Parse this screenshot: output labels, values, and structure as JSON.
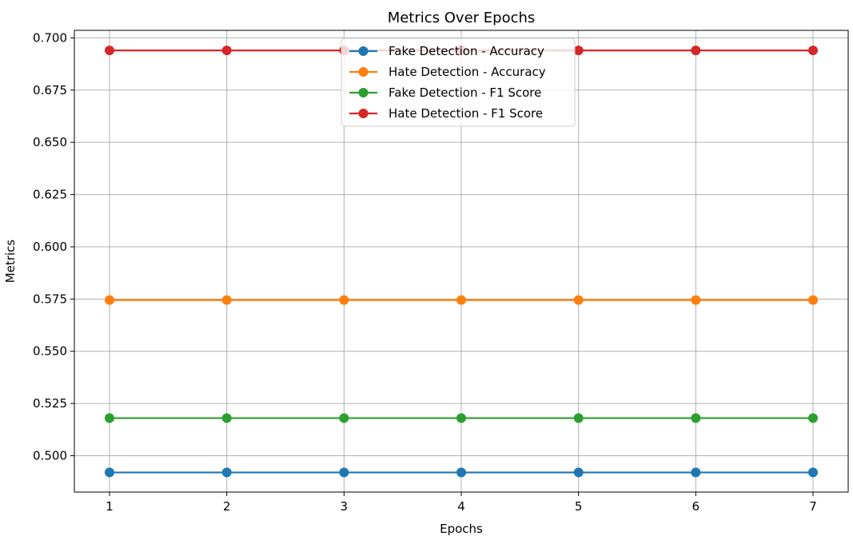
{
  "chart_data": {
    "type": "line",
    "title": "Metrics Over Epochs",
    "xlabel": "Epochs",
    "ylabel": "Metrics",
    "x": [
      1,
      2,
      3,
      4,
      5,
      6,
      7
    ],
    "x_ticks": [
      "1",
      "2",
      "3",
      "4",
      "5",
      "6",
      "7"
    ],
    "y_ticks": [
      "0.500",
      "0.525",
      "0.550",
      "0.575",
      "0.600",
      "0.625",
      "0.650",
      "0.675",
      "0.700"
    ],
    "xlim": [
      0.7,
      7.3
    ],
    "ylim": [
      0.4826,
      0.7036
    ],
    "grid": true,
    "legend_position": "top-center",
    "series": [
      {
        "name": "Fake Detection - Accuracy",
        "color": "#1f77b4",
        "values": [
          0.492,
          0.492,
          0.492,
          0.492,
          0.492,
          0.492,
          0.492
        ]
      },
      {
        "name": "Hate Detection - Accuracy",
        "color": "#ff7f0e",
        "values": [
          0.5745,
          0.5745,
          0.5745,
          0.5745,
          0.5745,
          0.5745,
          0.5745
        ]
      },
      {
        "name": "Fake Detection - F1 Score",
        "color": "#2ca02c",
        "values": [
          0.518,
          0.518,
          0.518,
          0.518,
          0.518,
          0.518,
          0.518
        ]
      },
      {
        "name": "Hate Detection - F1 Score",
        "color": "#d62728",
        "values": [
          0.694,
          0.694,
          0.694,
          0.694,
          0.694,
          0.694,
          0.694
        ]
      }
    ]
  }
}
